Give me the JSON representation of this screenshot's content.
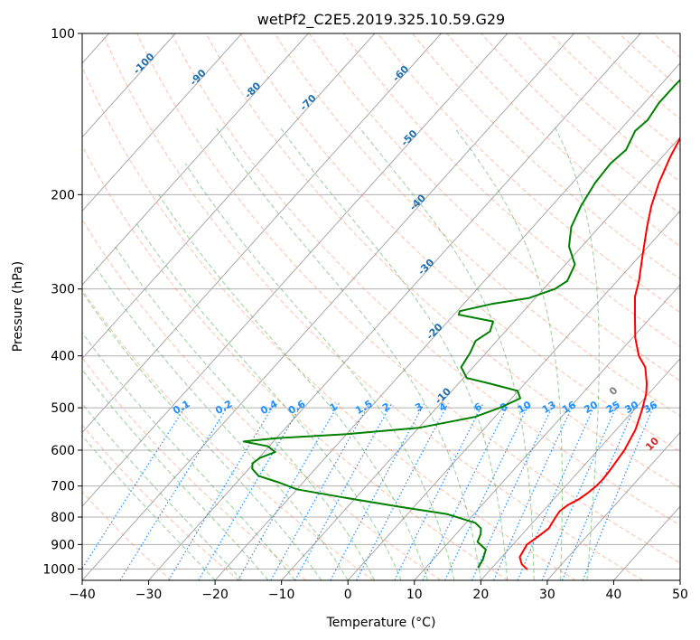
{
  "chart_data": {
    "type": "line",
    "title": "wetPf2_C2E5.2019.325.10.59.G29",
    "xlabel": "Temperature (°C)",
    "ylabel": "Pressure (hPa)",
    "xlim": [
      -40,
      50
    ],
    "ylim": [
      1050,
      100
    ],
    "y_scale": "log",
    "x_ticks": [
      "−40",
      "−30",
      "−20",
      "−10",
      "0",
      "10",
      "20",
      "30",
      "40",
      "50"
    ],
    "x_tick_values": [
      -40,
      -30,
      -20,
      -10,
      0,
      10,
      20,
      30,
      40,
      50
    ],
    "y_ticks": [
      "100",
      "200",
      "300",
      "400",
      "500",
      "600",
      "700",
      "800",
      "900",
      "1000"
    ],
    "y_tick_values": [
      100,
      200,
      300,
      400,
      500,
      600,
      700,
      800,
      900,
      1000
    ],
    "grid": true,
    "series": [
      {
        "color": "#ff0000",
        "values": [
          [
            25.6,
            1003
          ],
          [
            24,
            980
          ],
          [
            22.7,
            950
          ],
          [
            22.1,
            900
          ],
          [
            22.7,
            870
          ],
          [
            23.2,
            840
          ],
          [
            22.7,
            800
          ],
          [
            22.5,
            780
          ],
          [
            22.9,
            760
          ],
          [
            23.8,
            740
          ],
          [
            24.3,
            720
          ],
          [
            24.6,
            700
          ],
          [
            24.7,
            680
          ],
          [
            24.5,
            650
          ],
          [
            24.0,
            600
          ],
          [
            22.9,
            550
          ],
          [
            21.8,
            520
          ],
          [
            21.0,
            500
          ],
          [
            19.6,
            470
          ],
          [
            18.3,
            450
          ],
          [
            15.9,
            420
          ],
          [
            13.4,
            400
          ],
          [
            10.4,
            370
          ],
          [
            7.7,
            340
          ],
          [
            4.8,
            310
          ],
          [
            3.3,
            290
          ],
          [
            0.4,
            260
          ],
          [
            -2.8,
            230
          ],
          [
            -5.0,
            210
          ],
          [
            -7.0,
            190
          ],
          [
            -8.8,
            170
          ],
          [
            -10.0,
            155
          ],
          [
            -9.8,
            150
          ],
          [
            -9.5,
            145
          ],
          [
            -10.3,
            135
          ],
          [
            -10.8,
            125
          ],
          [
            -10.6,
            120
          ],
          [
            -10.7,
            115
          ],
          [
            -11.7,
            108
          ],
          [
            -12.8,
            100
          ]
        ]
      },
      {
        "color": "#008000",
        "values": [
          [
            17.9,
            995
          ],
          [
            17.5,
            960
          ],
          [
            16.6,
            920
          ],
          [
            14.3,
            890
          ],
          [
            13.7,
            860
          ],
          [
            13.0,
            840
          ],
          [
            11.4,
            820
          ],
          [
            6.0,
            790
          ],
          [
            -2.3,
            765
          ],
          [
            -12.0,
            735
          ],
          [
            -20.0,
            710
          ],
          [
            -23.5,
            690
          ],
          [
            -27.6,
            670
          ],
          [
            -29.5,
            650
          ],
          [
            -30.2,
            635
          ],
          [
            -29.8,
            620
          ],
          [
            -28.3,
            605
          ],
          [
            -30.2,
            590
          ],
          [
            -34.5,
            578
          ],
          [
            -30.0,
            570
          ],
          [
            -20.0,
            560
          ],
          [
            -10.0,
            545
          ],
          [
            -3.0,
            520
          ],
          [
            -0.5,
            500
          ],
          [
            1.3,
            480
          ],
          [
            -0.1,
            465
          ],
          [
            -5.5,
            450
          ],
          [
            -9.5,
            440
          ],
          [
            -11.8,
            420
          ],
          [
            -12.4,
            395
          ],
          [
            -13.2,
            375
          ],
          [
            -12.3,
            360
          ],
          [
            -13.2,
            345
          ],
          [
            -19.3,
            335
          ],
          [
            -19.6,
            330
          ],
          [
            -15.8,
            320
          ],
          [
            -11.0,
            312
          ],
          [
            -8.3,
            300
          ],
          [
            -7.5,
            290
          ],
          [
            -8.6,
            270
          ],
          [
            -11.9,
            250
          ],
          [
            -14.2,
            230
          ],
          [
            -15.6,
            210
          ],
          [
            -16.6,
            190
          ],
          [
            -16.9,
            175
          ],
          [
            -16.4,
            165
          ],
          [
            -17.6,
            152
          ],
          [
            -17.2,
            145
          ],
          [
            -17.8,
            135
          ],
          [
            -17.8,
            125
          ],
          [
            -17.6,
            118
          ],
          [
            -16.4,
            110
          ],
          [
            -15.2,
            100
          ]
        ]
      }
    ],
    "background_lines": [
      "dry adiabats",
      "moist adiabats",
      "mixing ratio lines",
      "isotherms"
    ],
    "annotations": {
      "dry_adiabat_labels": [
        "-100",
        "-90",
        "-80",
        "-70",
        "-60",
        "-50",
        "-40",
        "-30",
        "-20",
        "-10",
        "0",
        "10",
        "20",
        "30",
        "40"
      ],
      "mixing_ratio_labels": [
        "0.1",
        "0.2",
        "0.4",
        "0.6",
        "1",
        "1.5",
        "2",
        "3",
        "4",
        "6",
        "8",
        "10",
        "13",
        "16",
        "20",
        "25",
        "30",
        "36"
      ]
    },
    "colors": {
      "temperature": "#ff0000",
      "dewpoint": "#008000",
      "dry_adiabat": "#ff7f50",
      "moist_adiabat": "#2ca02c",
      "mixing_ratio": "#1e90ff",
      "isotherm": "#555555",
      "label_blue_dark": "#1f6fb0",
      "label_red": "#d62728"
    }
  }
}
